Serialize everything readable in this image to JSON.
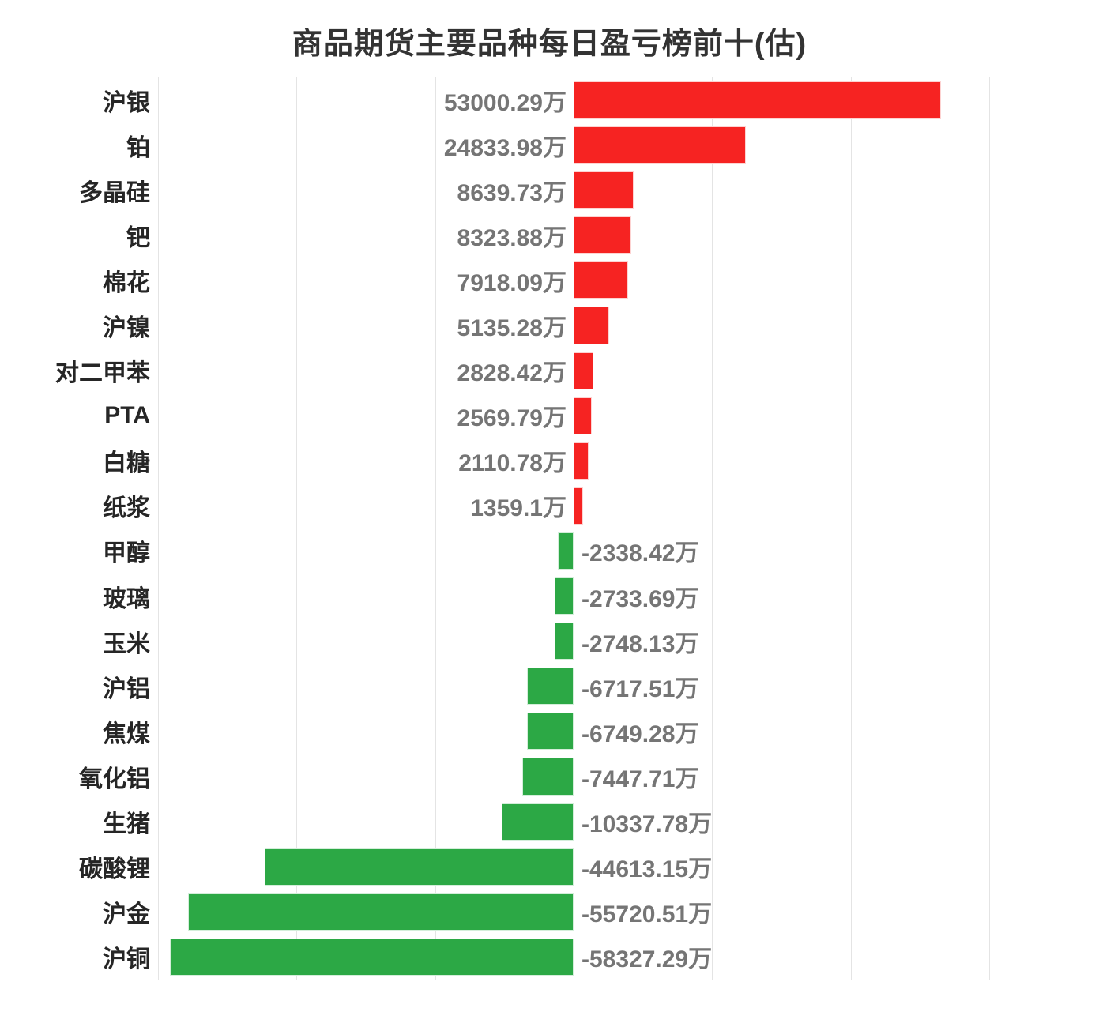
{
  "title": "商品期货主要品种每日盈亏榜前十(估)",
  "colors": {
    "positive_bar": "#f62322",
    "negative_bar": "#2ca845",
    "title_text": "#333333",
    "category_text": "#262626",
    "value_text": "#757575",
    "gridline": "#e4e4e4",
    "axis_line": "#dbdbdb",
    "background": "#ffffff"
  },
  "chart_data": {
    "type": "bar",
    "orientation": "horizontal",
    "title": "商品期货主要品种每日盈亏榜前十(估)",
    "unit": "万",
    "categories": [
      "沪银",
      "铂",
      "多晶硅",
      "钯",
      "棉花",
      "沪镍",
      "对二甲苯",
      "PTA",
      "白糖",
      "纸浆",
      "甲醇",
      "玻璃",
      "玉米",
      "沪铝",
      "焦煤",
      "氧化铝",
      "生猪",
      "碳酸锂",
      "沪金",
      "沪铜"
    ],
    "values": [
      53000.29,
      24833.98,
      8639.73,
      8323.88,
      7918.09,
      5135.28,
      2828.42,
      2569.79,
      2110.78,
      1359.1,
      -2338.42,
      -2733.69,
      -2748.13,
      -6717.51,
      -6749.28,
      -7447.71,
      -10337.78,
      -44613.15,
      -55720.51,
      -58327.29
    ],
    "value_labels": [
      "53000.29万",
      "24833.98万",
      "8639.73万",
      "8323.88万",
      "7918.09万",
      "5135.28万",
      "2828.42万",
      "2569.79万",
      "2110.78万",
      "1359.1万",
      "-2338.42万",
      "-2733.69万",
      "-2748.13万",
      "-6717.51万",
      "-6749.28万",
      "-7447.71万",
      "-10337.78万",
      "-44613.15万",
      "-55720.51万",
      "-58327.29万"
    ],
    "xlabel": "",
    "ylabel": "",
    "xlim": [
      -60000,
      60000
    ],
    "grid_interval": 20000,
    "grid": true,
    "legend": false,
    "zero_axis_position": "center"
  }
}
